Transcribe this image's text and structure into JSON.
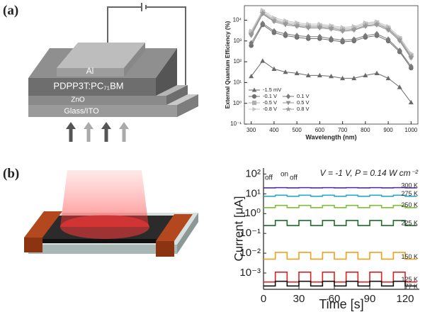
{
  "panel_a": {
    "label": "(a)",
    "layers": [
      "Al",
      "PDPP3T:PC₇₁BM",
      "ZnO",
      "Glass/ITO"
    ]
  },
  "panel_b": {
    "label": "(b)"
  },
  "chart_data": [
    {
      "type": "line",
      "log_y": true,
      "legend": "lower left",
      "x_label": "Wavelength (nm)",
      "y_label": "External Quantum Efficiency (%)",
      "x": [
        300,
        350,
        400,
        450,
        500,
        550,
        600,
        650,
        700,
        750,
        800,
        850,
        900,
        950,
        1000
      ],
      "xlim": [
        270,
        1030
      ],
      "xticks": [
        300,
        400,
        500,
        600,
        700,
        800,
        900,
        1000
      ],
      "ylim": [
        0.1,
        50000
      ],
      "yticks": [
        {
          "value": 0.1,
          "label": "10⁻¹"
        },
        {
          "value": 1,
          "label": "10⁰"
        },
        {
          "value": 10,
          "label": "10¹"
        },
        {
          "value": 100,
          "label": "10²"
        },
        {
          "value": 1000,
          "label": "10³"
        },
        {
          "value": 10000,
          "label": "10⁴"
        }
      ],
      "series": [
        {
          "name": "-1.5 mV",
          "color": "#6a6a6a",
          "marker": "triangle",
          "values": [
            20,
            110,
            45,
            32,
            28,
            22,
            22,
            20,
            16,
            16,
            22,
            28,
            16,
            6,
            1.1
          ]
        },
        {
          "name": "-0.1 V",
          "color": "#707070",
          "marker": "circle",
          "values": [
            600,
            6000,
            2500,
            1800,
            1500,
            1300,
            1300,
            1100,
            900,
            1000,
            1500,
            1800,
            1000,
            300,
            50
          ]
        },
        {
          "name": "0.1 V",
          "color": "#7a7a7a",
          "marker": "diamond",
          "values": [
            800,
            7000,
            3000,
            2200,
            1800,
            1600,
            1600,
            1300,
            1100,
            1200,
            1800,
            2200,
            1200,
            350,
            60
          ]
        },
        {
          "name": "-0.5 V",
          "color": "#b0b0b0",
          "marker": "square",
          "values": [
            2500,
            25000,
            11000,
            8000,
            6500,
            5500,
            5500,
            4800,
            3800,
            4300,
            6500,
            7500,
            4200,
            1300,
            200
          ]
        },
        {
          "name": "0.5 V",
          "color": "#909090",
          "marker": "triangle-down",
          "values": [
            1800,
            20000,
            8500,
            6000,
            5000,
            4200,
            4200,
            3700,
            2900,
            3300,
            5000,
            5800,
            3300,
            1000,
            150
          ]
        },
        {
          "name": "-0.8 V",
          "color": "#c4c4c4",
          "marker": "triangle-right",
          "values": [
            3000,
            30000,
            13000,
            9500,
            7500,
            6500,
            6500,
            5500,
            4500,
            5000,
            7500,
            8500,
            5000,
            1500,
            250
          ]
        },
        {
          "name": "0.8 V",
          "color": "#9a9a9a",
          "marker": "star",
          "values": [
            2200,
            22000,
            9500,
            7000,
            5500,
            4800,
            4800,
            4200,
            3300,
            3700,
            5500,
            6500,
            3800,
            1150,
            170
          ]
        }
      ]
    },
    {
      "type": "line",
      "log_y": true,
      "legend": "line end",
      "x_label": "Time [s]",
      "y_label": "Current [μA]",
      "annotations": [
        "V = -1 V, P = 0.14 W cm⁻²",
        "off",
        "on",
        "off"
      ],
      "x": [
        0,
        10,
        10,
        20,
        20,
        30,
        30,
        40,
        40,
        50,
        50,
        60,
        60,
        70,
        70,
        80,
        80,
        90,
        90,
        100,
        100,
        110,
        110,
        120,
        120,
        130
      ],
      "xlim": [
        0,
        132
      ],
      "xticks": [
        0,
        30,
        60,
        90,
        120
      ],
      "ylim": [
        0.00015,
        200
      ],
      "yticks": [
        {
          "value": 0.001,
          "label": "10⁻³"
        },
        {
          "value": 0.01,
          "label": "10⁻²"
        },
        {
          "value": 0.1,
          "label": "10⁻¹"
        },
        {
          "value": 1,
          "label": "10⁰"
        },
        {
          "value": 10,
          "label": "10¹"
        },
        {
          "value": 100,
          "label": "10²"
        }
      ],
      "series": [
        {
          "name": "300 K",
          "color": "#4b2e9e",
          "marker": "none",
          "values": [
            20,
            20,
            20.5,
            20.5,
            20,
            20,
            20.5,
            20.5,
            20,
            20,
            20.5,
            20.5,
            20,
            20,
            20.5,
            20.5,
            20,
            20,
            20.5,
            20.5,
            20,
            20,
            20.5,
            20.5,
            20,
            20
          ]
        },
        {
          "name": "275 K",
          "color": "#2aa8c8",
          "marker": "none",
          "values": [
            7.5,
            7.5,
            8.5,
            8.5,
            7.5,
            7.5,
            8.5,
            8.5,
            7.5,
            7.5,
            8.5,
            8.5,
            7.5,
            7.5,
            8.5,
            8.5,
            7.5,
            7.5,
            8.5,
            8.5,
            7.5,
            7.5,
            8.5,
            8.5,
            7.5,
            7.5
          ]
        },
        {
          "name": "250 K",
          "color": "#7cbf3a",
          "marker": "none",
          "values": [
            2,
            2,
            2.6,
            2.6,
            2,
            2,
            2.6,
            2.6,
            2,
            2,
            2.6,
            2.6,
            2,
            2,
            2.6,
            2.6,
            2,
            2,
            2.6,
            2.6,
            2,
            2,
            2.6,
            2.6,
            2,
            2
          ]
        },
        {
          "name": "225 K",
          "color": "#1f6b2a",
          "marker": "none",
          "values": [
            0.25,
            0.25,
            0.45,
            0.45,
            0.25,
            0.25,
            0.45,
            0.45,
            0.25,
            0.25,
            0.45,
            0.45,
            0.25,
            0.25,
            0.45,
            0.45,
            0.25,
            0.25,
            0.45,
            0.45,
            0.25,
            0.25,
            0.45,
            0.45,
            0.25,
            0.25
          ]
        },
        {
          "name": "150 K",
          "color": "#f0a020",
          "marker": "none",
          "values": [
            0.005,
            0.005,
            0.011,
            0.011,
            0.005,
            0.005,
            0.011,
            0.011,
            0.005,
            0.005,
            0.011,
            0.011,
            0.005,
            0.005,
            0.011,
            0.011,
            0.005,
            0.005,
            0.011,
            0.011,
            0.005,
            0.005,
            0.011,
            0.011,
            0.005,
            0.005
          ]
        },
        {
          "name": "125 K",
          "color": "#e02020",
          "marker": "none",
          "values": [
            0.00035,
            0.00035,
            0.0011,
            0.0011,
            0.00035,
            0.00035,
            0.0011,
            0.0011,
            0.00035,
            0.00035,
            0.0011,
            0.0011,
            0.00035,
            0.00035,
            0.0011,
            0.0011,
            0.00035,
            0.00035,
            0.0011,
            0.0011,
            0.00035,
            0.00035,
            0.0011,
            0.0011,
            0.00035,
            0.00035
          ]
        },
        {
          "name": "77 K",
          "color": "#111111",
          "marker": "none",
          "values": [
            0.00022,
            0.00022,
            0.00038,
            0.00038,
            0.00022,
            0.00022,
            0.00038,
            0.00038,
            0.00022,
            0.00022,
            0.00038,
            0.00038,
            0.00022,
            0.00022,
            0.00038,
            0.00038,
            0.00022,
            0.00022,
            0.00038,
            0.00038,
            0.00022,
            0.00022,
            0.00038,
            0.00038,
            0.00022,
            0.00022
          ]
        }
      ]
    }
  ]
}
